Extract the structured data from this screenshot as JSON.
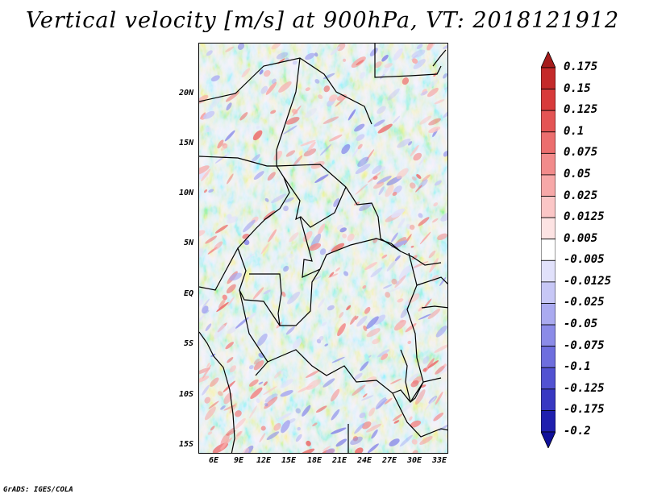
{
  "title": "Vertical velocity [m/s] at 900hPa, VT: 2018121912",
  "map": {
    "variable": "vertical velocity",
    "level": "900hPa",
    "valid_time": "2018121912",
    "lat_labels": [
      "20N",
      "15N",
      "10N",
      "5N",
      "EQ",
      "5S",
      "10S",
      "15S"
    ],
    "lon_labels": [
      "6E",
      "9E",
      "12E",
      "15E",
      "18E",
      "21E",
      "24E",
      "27E",
      "30E",
      "33E"
    ],
    "lat_range": [
      -16,
      24.5
    ],
    "lon_range": [
      3.5,
      33.5
    ]
  },
  "colorbar": {
    "labels": [
      "0.175",
      "0.15",
      "0.125",
      "0.1",
      "0.075",
      "0.05",
      "0.025",
      "0.0125",
      "0.005",
      "-0.005",
      "-0.0125",
      "-0.025",
      "-0.05",
      "-0.075",
      "-0.1",
      "-0.125",
      "-0.175",
      "-0.2"
    ],
    "colors": [
      "#a51c1c",
      "#c42a2a",
      "#d83b3b",
      "#e45454",
      "#ec6e6e",
      "#f28b8b",
      "#f7a8a8",
      "#fbc6c6",
      "#fde3e3",
      "#ffffff",
      "#e1e1fb",
      "#c7c7f6",
      "#aaaaf0",
      "#8b8be8",
      "#6e6ede",
      "#5252d2",
      "#3838c2",
      "#1f1fae",
      "#10109a"
    ]
  },
  "credit": "GrADS: IGES/COLA"
}
